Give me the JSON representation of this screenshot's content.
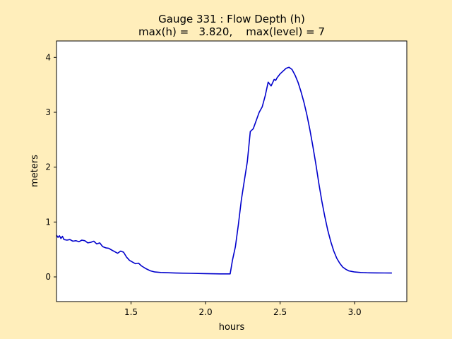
{
  "chart_data": {
    "type": "line",
    "title": "Gauge 331 : Flow Depth (h)",
    "subtitle": "max(h) =   3.820,    max(level) = 7",
    "xlabel": "hours",
    "ylabel": "meters",
    "xlim": [
      1.0,
      3.35
    ],
    "ylim": [
      -0.45,
      4.3
    ],
    "xticks": [
      1.5,
      2.0,
      2.5,
      3.0
    ],
    "xtick_labels": [
      "1.5",
      "2.0",
      "2.5",
      "3.0"
    ],
    "yticks": [
      0,
      1,
      2,
      3,
      4
    ],
    "ytick_labels": [
      "0",
      "1",
      "2",
      "3",
      "4"
    ],
    "grid": false,
    "line_color": "#0000cc",
    "figure_background": "#ffeebb",
    "axes_background": "#ffffff",
    "series": [
      {
        "x": [
          1.0,
          1.01,
          1.02,
          1.03,
          1.04,
          1.05,
          1.07,
          1.09,
          1.11,
          1.13,
          1.15,
          1.17,
          1.19,
          1.21,
          1.23,
          1.25,
          1.27,
          1.29,
          1.31,
          1.33,
          1.35,
          1.37,
          1.39,
          1.41,
          1.43,
          1.45,
          1.47,
          1.49,
          1.51,
          1.53,
          1.55,
          1.57,
          1.6,
          1.63,
          1.66,
          1.7,
          1.8,
          1.9,
          2.0,
          2.1,
          2.15,
          2.165,
          2.18,
          2.2,
          2.22,
          2.24,
          2.26,
          2.28,
          2.3,
          2.32,
          2.34,
          2.36,
          2.38,
          2.4,
          2.42,
          2.44,
          2.46,
          2.47,
          2.48,
          2.5,
          2.52,
          2.54,
          2.56,
          2.58,
          2.6,
          2.62,
          2.64,
          2.66,
          2.68,
          2.7,
          2.72,
          2.74,
          2.76,
          2.78,
          2.8,
          2.82,
          2.84,
          2.86,
          2.88,
          2.9,
          2.92,
          2.94,
          2.96,
          2.98,
          3.0,
          3.02,
          3.04,
          3.06,
          3.08,
          3.1,
          3.15,
          3.2,
          3.25
        ],
        "y": [
          0.76,
          0.72,
          0.75,
          0.7,
          0.74,
          0.68,
          0.67,
          0.68,
          0.65,
          0.66,
          0.64,
          0.67,
          0.66,
          0.62,
          0.63,
          0.65,
          0.6,
          0.62,
          0.55,
          0.53,
          0.52,
          0.49,
          0.46,
          0.43,
          0.47,
          0.45,
          0.36,
          0.3,
          0.27,
          0.24,
          0.25,
          0.2,
          0.15,
          0.11,
          0.09,
          0.08,
          0.07,
          0.065,
          0.06,
          0.055,
          0.055,
          0.055,
          0.3,
          0.55,
          0.95,
          1.4,
          1.75,
          2.1,
          2.65,
          2.7,
          2.85,
          3.0,
          3.1,
          3.3,
          3.55,
          3.48,
          3.6,
          3.58,
          3.63,
          3.7,
          3.75,
          3.8,
          3.82,
          3.78,
          3.68,
          3.55,
          3.38,
          3.18,
          2.95,
          2.68,
          2.38,
          2.05,
          1.7,
          1.38,
          1.1,
          0.85,
          0.64,
          0.47,
          0.34,
          0.25,
          0.18,
          0.14,
          0.11,
          0.1,
          0.09,
          0.085,
          0.08,
          0.078,
          0.075,
          0.074,
          0.072,
          0.071,
          0.07
        ]
      }
    ]
  }
}
